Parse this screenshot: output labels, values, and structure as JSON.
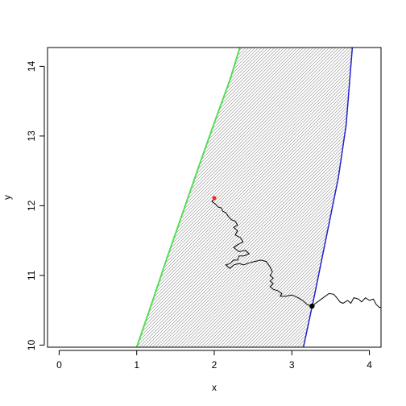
{
  "chart_data": {
    "type": "line",
    "xlabel": "x",
    "ylabel": "y",
    "xlim": [
      -0.15,
      4.15
    ],
    "ylim": [
      9.97,
      14.27
    ],
    "x_ticks": [
      0,
      1,
      2,
      3,
      4
    ],
    "y_ticks": [
      10,
      11,
      12,
      13,
      14
    ],
    "grid": false,
    "legend": "none",
    "colors": {
      "left_boundary": "#55dd55",
      "right_boundary": "#2222cc",
      "band_hatch": "#8a8a8a",
      "path": "#000000",
      "start_point": "#ff2222",
      "end_point": "#000000"
    },
    "left_boundary": [
      [
        1.0,
        9.97
      ],
      [
        1.2,
        10.62
      ],
      [
        1.4,
        11.28
      ],
      [
        1.6,
        11.92
      ],
      [
        1.8,
        12.56
      ],
      [
        2.0,
        13.19
      ],
      [
        2.2,
        13.8
      ],
      [
        2.33,
        14.27
      ]
    ],
    "right_boundary": [
      [
        3.15,
        9.97
      ],
      [
        3.3,
        10.76
      ],
      [
        3.45,
        11.58
      ],
      [
        3.6,
        12.4
      ],
      [
        3.7,
        13.16
      ],
      [
        3.78,
        14.27
      ]
    ],
    "path": [
      [
        2.0,
        12.1
      ],
      [
        1.97,
        12.06
      ],
      [
        2.02,
        12.02
      ],
      [
        2.05,
        11.98
      ],
      [
        2.09,
        11.97
      ],
      [
        2.11,
        11.92
      ],
      [
        2.15,
        11.9
      ],
      [
        2.18,
        11.85
      ],
      [
        2.22,
        11.8
      ],
      [
        2.27,
        11.78
      ],
      [
        2.3,
        11.72
      ],
      [
        2.25,
        11.69
      ],
      [
        2.3,
        11.64
      ],
      [
        2.27,
        11.58
      ],
      [
        2.34,
        11.54
      ],
      [
        2.37,
        11.48
      ],
      [
        2.3,
        11.44
      ],
      [
        2.25,
        11.4
      ],
      [
        2.32,
        11.34
      ],
      [
        2.4,
        11.36
      ],
      [
        2.45,
        11.31
      ],
      [
        2.38,
        11.28
      ],
      [
        2.32,
        11.28
      ],
      [
        2.3,
        11.22
      ],
      [
        2.25,
        11.22
      ],
      [
        2.2,
        11.17
      ],
      [
        2.15,
        11.15
      ],
      [
        2.2,
        11.1
      ],
      [
        2.25,
        11.15
      ],
      [
        2.32,
        11.17
      ],
      [
        2.38,
        11.15
      ],
      [
        2.45,
        11.18
      ],
      [
        2.52,
        11.2
      ],
      [
        2.6,
        11.22
      ],
      [
        2.67,
        11.2
      ],
      [
        2.72,
        11.12
      ],
      [
        2.75,
        11.05
      ],
      [
        2.72,
        11.0
      ],
      [
        2.76,
        10.96
      ],
      [
        2.72,
        10.92
      ],
      [
        2.76,
        10.88
      ],
      [
        2.72,
        10.84
      ],
      [
        2.76,
        10.8
      ],
      [
        2.82,
        10.78
      ],
      [
        2.87,
        10.74
      ],
      [
        2.85,
        10.7
      ],
      [
        2.92,
        10.7
      ],
      [
        3.0,
        10.72
      ],
      [
        3.08,
        10.68
      ],
      [
        3.14,
        10.64
      ],
      [
        3.2,
        10.58
      ],
      [
        3.26,
        10.56
      ],
      [
        3.32,
        10.61
      ],
      [
        3.38,
        10.66
      ],
      [
        3.43,
        10.7
      ],
      [
        3.48,
        10.74
      ],
      [
        3.54,
        10.73
      ],
      [
        3.58,
        10.68
      ],
      [
        3.62,
        10.62
      ],
      [
        3.66,
        10.6
      ],
      [
        3.72,
        10.64
      ],
      [
        3.76,
        10.6
      ],
      [
        3.8,
        10.68
      ],
      [
        3.86,
        10.66
      ],
      [
        3.9,
        10.62
      ],
      [
        3.95,
        10.68
      ],
      [
        4.0,
        10.64
      ],
      [
        4.05,
        10.66
      ],
      [
        4.09,
        10.58
      ],
      [
        4.13,
        10.54
      ],
      [
        4.18,
        10.55
      ]
    ],
    "start_point": [
      2.0,
      12.11
    ],
    "end_point": [
      3.26,
      10.56
    ]
  }
}
